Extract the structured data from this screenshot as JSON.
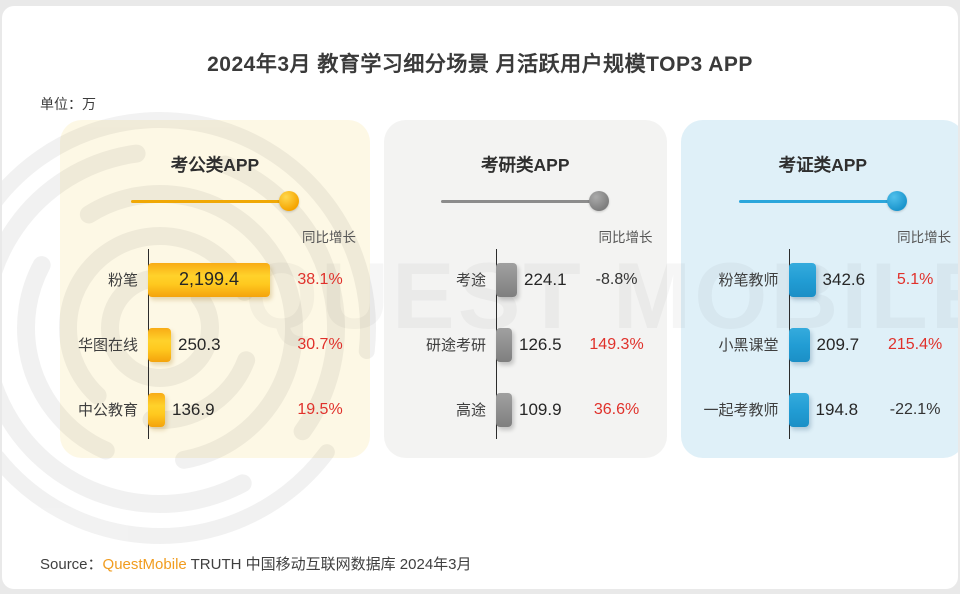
{
  "page": {
    "title": "2024年3月 教育学习细分场景 月活跃用户规模TOP3 APP",
    "unit_label": "单位：万",
    "source": {
      "prefix": "Source：",
      "brand": "QuestMobile",
      "suffix": " TRUTH 中国移动互联网数据库 2024年3月"
    },
    "watermark_text": "QUEST MOBILE"
  },
  "colors": {
    "growth_positive": "#e0312b",
    "growth_negative": "#333333",
    "gov_accent": "#f5a400",
    "grad_accent": "#8c8c8c",
    "cert_accent": "#229dd4",
    "gov_panel_bg": "#fdf8e5",
    "grad_panel_bg": "#f3f3f2",
    "cert_panel_bg": "#dff0f8"
  },
  "chart_data": [
    {
      "type": "bar",
      "title": "考公类APP",
      "unit": "万",
      "growth_label": "同比增长",
      "categories": [
        "粉笔",
        "华图在线",
        "中公教育"
      ],
      "values": [
        2199.4,
        250.3,
        136.9
      ],
      "value_display": [
        "2,199.4",
        "250.3",
        "136.9"
      ],
      "growth_values": [
        "38.1%",
        "30.7%",
        "19.5%"
      ],
      "accent": "#f5a400",
      "panel_bg": "#fdf8e5",
      "legend_position": "none",
      "grid": false
    },
    {
      "type": "bar",
      "title": "考研类APP",
      "unit": "万",
      "growth_label": "同比增长",
      "categories": [
        "考途",
        "研途考研",
        "高途"
      ],
      "values": [
        224.1,
        126.5,
        109.9
      ],
      "value_display": [
        "224.1",
        "126.5",
        "109.9"
      ],
      "growth_values": [
        "-8.8%",
        "149.3%",
        "36.6%"
      ],
      "accent": "#8c8c8c",
      "panel_bg": "#f3f3f2",
      "legend_position": "none",
      "grid": false
    },
    {
      "type": "bar",
      "title": "考证类APP",
      "unit": "万",
      "growth_label": "同比增长",
      "categories": [
        "粉笔教师",
        "小黑课堂",
        "一起考教师"
      ],
      "values": [
        342.6,
        209.7,
        194.8
      ],
      "value_display": [
        "342.6",
        "209.7",
        "194.8"
      ],
      "growth_values": [
        "5.1%",
        "215.4%",
        "-22.1%"
      ],
      "accent": "#229dd4",
      "panel_bg": "#dff0f8",
      "legend_position": "none",
      "grid": false
    }
  ]
}
